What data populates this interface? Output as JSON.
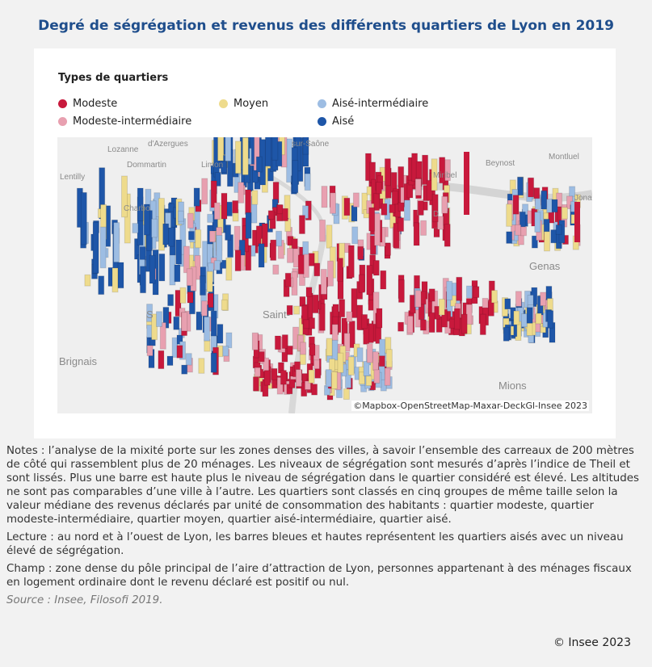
{
  "title": "Degré de ségrégation et revenus des différents quartiers de Lyon en 2019",
  "legend": {
    "title": "Types de quartiers",
    "items": [
      {
        "label": "Modeste",
        "color": "#c8193c"
      },
      {
        "label": "Modeste-intermédiaire",
        "color": "#e8a0b0"
      },
      {
        "label": "Moyen",
        "color": "#eedb8c"
      },
      {
        "label": "Aisé-intermédiaire",
        "color": "#9dbde3"
      },
      {
        "label": "Aisé",
        "color": "#1e56a8"
      }
    ]
  },
  "map": {
    "places": [
      "Lozanne",
      "d'Azergues",
      "sur-Saône",
      "Dommartin",
      "Limon",
      "Lentilly",
      "Miribel",
      "Beynost",
      "Montluel",
      "Charbo",
      "Jonag",
      "D",
      "Genas",
      "S",
      "Saint-",
      "Brignais",
      "Mions"
    ],
    "attribution": "©Mapbox-OpenStreetMap-Maxar-DeckGl-Insee 2023"
  },
  "notes": [
    "Notes : l’analyse de la mixité porte sur les zones denses des villes, à savoir l’ensemble des carreaux de 200 mètres de côté qui rassemblent plus de 20 ménages. Les niveaux de ségrégation sont mesurés d’après l’indice de Theil et sont lissés. Plus une barre est haute plus le niveau de ségrégation dans le quartier considéré est élevé. Les altitudes ne sont pas comparables d’une ville à l’autre. Les quartiers sont classés en cinq groupes de même taille selon la valeur médiane des revenus déclarés par unité de consommation des habitants : quartier modeste, quartier modeste-intermédiaire, quartier moyen, quartier aisé-intermédiaire, quartier aisé.",
    "Lecture : au nord et à l’ouest de Lyon, les barres bleues et hautes représentent les quartiers aisés avec un niveau élevé de ségrégation.",
    "Champ : zone dense du pôle principal de l’aire d’attraction de Lyon, personnes appartenant à des ménages fiscaux en logement ordinaire dont le revenu déclaré est positif ou nul."
  ],
  "source": "Source : Insee, Filosofi 2019.",
  "copyright": "© Insee 2023"
}
